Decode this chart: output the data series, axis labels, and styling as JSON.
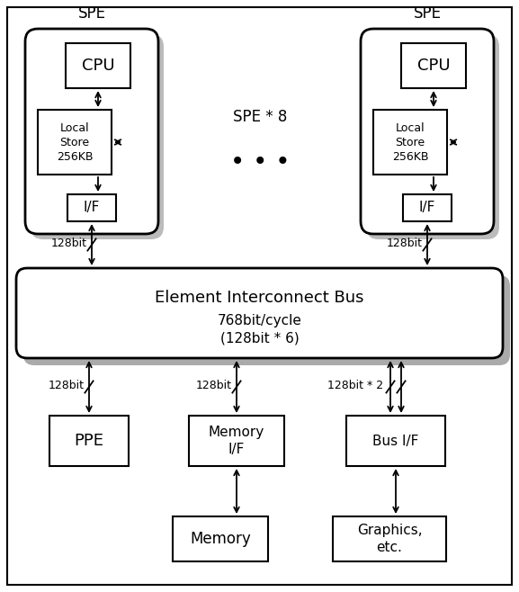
{
  "spe_label": "SPE",
  "spe_times": "SPE * 8",
  "cpu_label": "CPU",
  "local_store_label": "Local\nStore\n256KB",
  "if_label": "I/F",
  "bus_label": "Element Interconnect Bus",
  "bus_sublabel": "768bit/cycle\n(128bit * 6)",
  "ppe_label": "PPE",
  "mem_if_label": "Memory\nI/F",
  "bus_if_label": "Bus I/F",
  "memory_label": "Memory",
  "graphics_label": "Graphics,\netc.",
  "bit128_left": "128bit",
  "bit128_ppe": "128bit",
  "bit128_memif": "128bit",
  "bit128x2": "128bit * 2",
  "bit128_right": "128bit",
  "outer_border": true,
  "figw": 5.77,
  "figh": 6.58,
  "dpi": 100
}
